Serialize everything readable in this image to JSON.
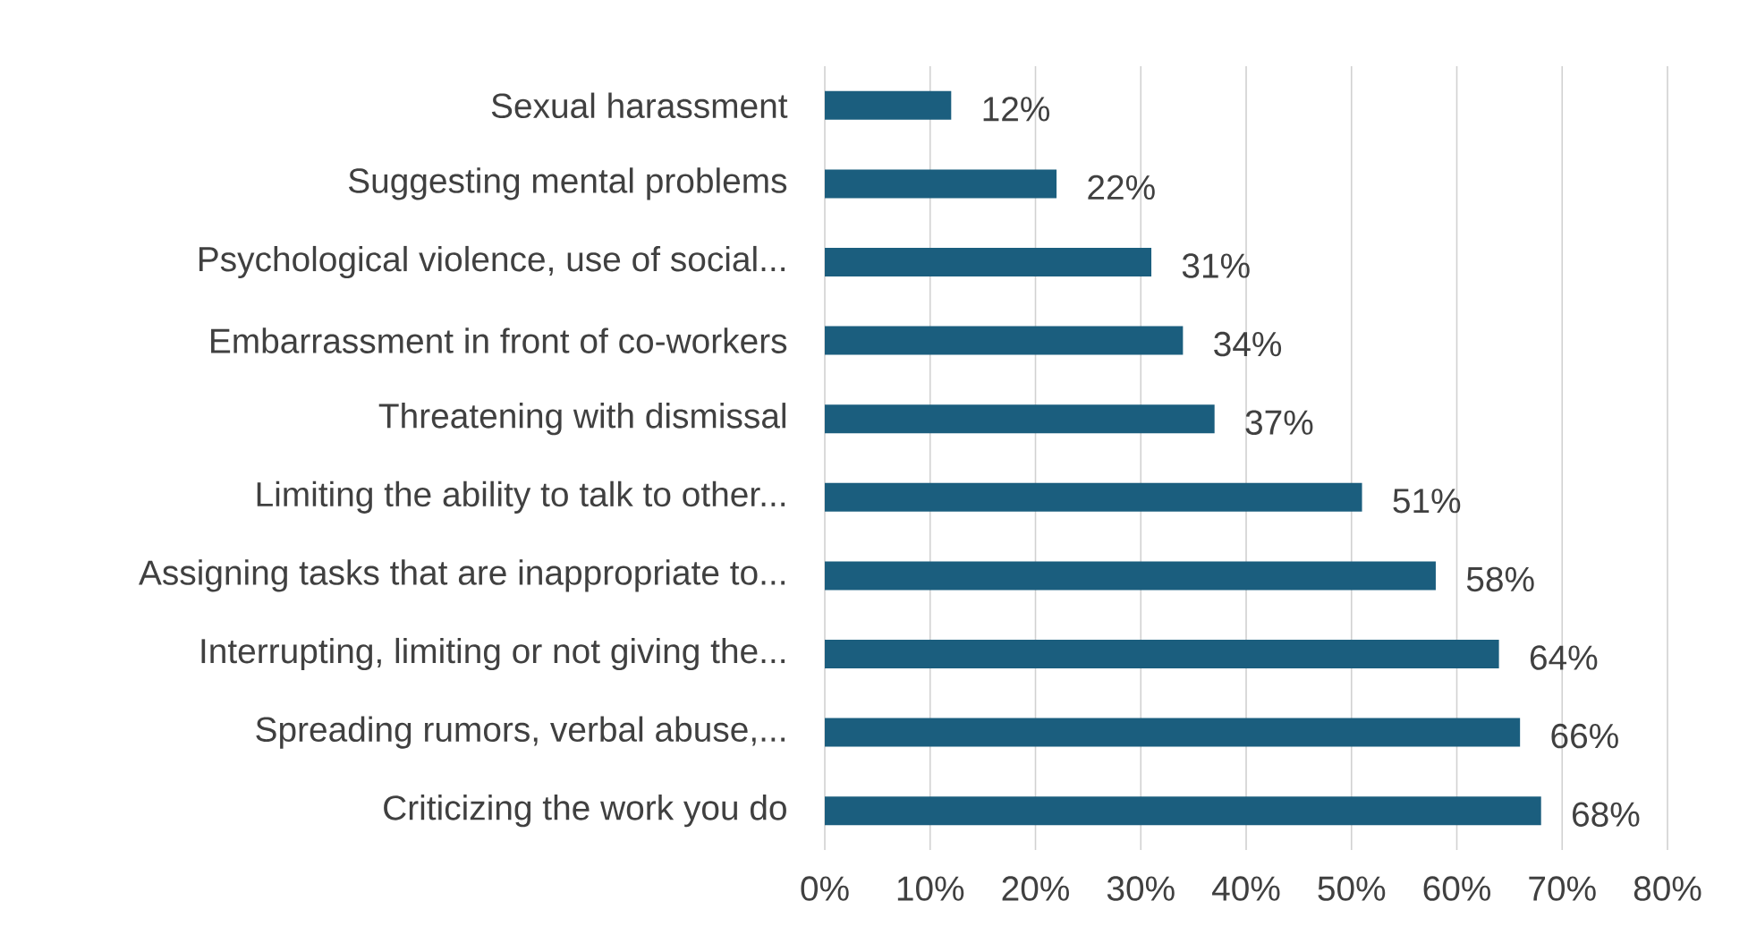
{
  "chart_data": {
    "type": "bar",
    "orientation": "horizontal",
    "categories": [
      "Sexual harassment",
      "Suggesting mental problems",
      "Psychological violence, use of social...",
      "Embarrassment in front of co-workers",
      "Threatening with dismissal",
      "Limiting the ability to talk to other...",
      "Assigning tasks that are inappropriate to...",
      "Interrupting, limiting or not giving the...",
      "Spreading rumors, verbal abuse,...",
      "Criticizing the work you do"
    ],
    "values": [
      12,
      22,
      31,
      34,
      37,
      51,
      58,
      64,
      66,
      68
    ],
    "value_labels": [
      "12%",
      "22%",
      "31%",
      "34%",
      "37%",
      "51%",
      "58%",
      "64%",
      "66%",
      "68%"
    ],
    "color": "#1b5e7e",
    "xlim": [
      0,
      80
    ],
    "xticks": [
      {
        "value": 0,
        "label": "0%"
      },
      {
        "value": 10,
        "label": "10%"
      },
      {
        "value": 20,
        "label": "20%"
      },
      {
        "value": 30,
        "label": "30%"
      },
      {
        "value": 40,
        "label": "40%"
      },
      {
        "value": 50,
        "label": "50%"
      },
      {
        "value": 60,
        "label": "60%"
      },
      {
        "value": 70,
        "label": "70%"
      },
      {
        "value": 80,
        "label": "80%"
      }
    ],
    "grid": "x"
  }
}
